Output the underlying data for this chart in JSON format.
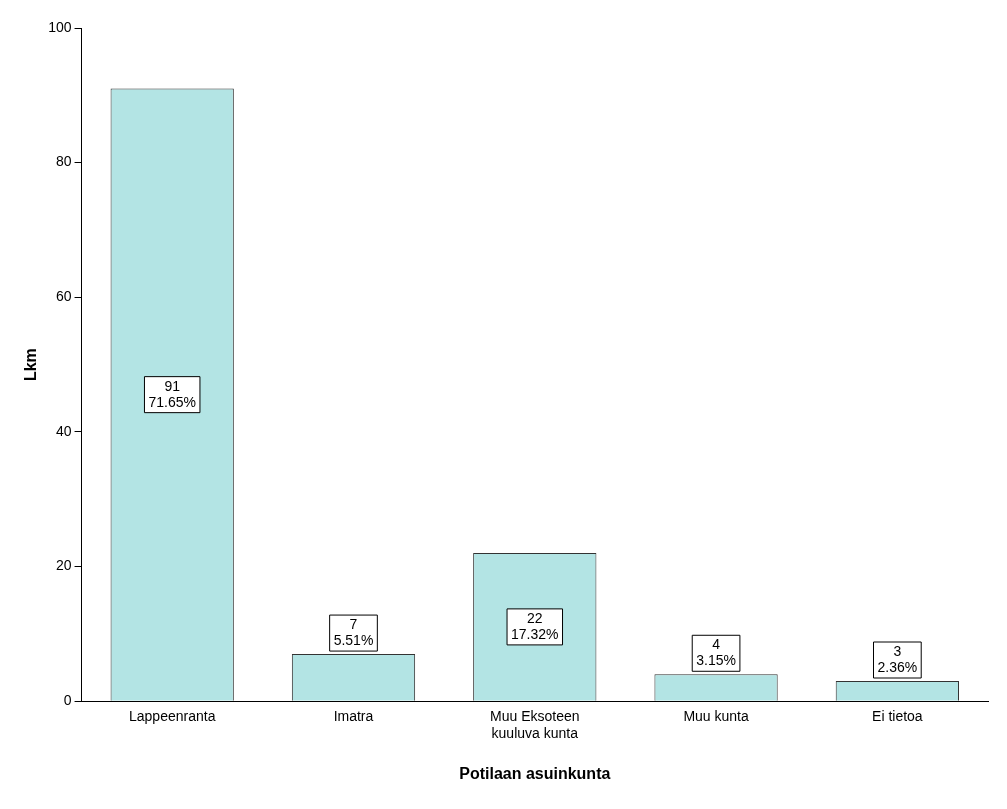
{
  "chart_data": {
    "type": "bar",
    "xlabel": "Potilaan asuinkunta",
    "ylabel": "Lkm",
    "categories": [
      "Lappeenranta",
      "Imatra",
      "Muu Eksoteen kuuluva kunta",
      "Muu kunta",
      "Ei tietoa"
    ],
    "values": [
      91,
      7,
      22,
      4,
      3
    ],
    "value_labels": [
      "91\n71.65%",
      "7\n5.51%",
      "22\n17.32%",
      "4\n3.15%",
      "3\n2.36%"
    ],
    "color": "#b3e4e4",
    "ylim": [
      0,
      100
    ],
    "yticks": [
      0,
      20,
      40,
      60,
      80,
      100
    ],
    "grid": false,
    "legend": false
  }
}
